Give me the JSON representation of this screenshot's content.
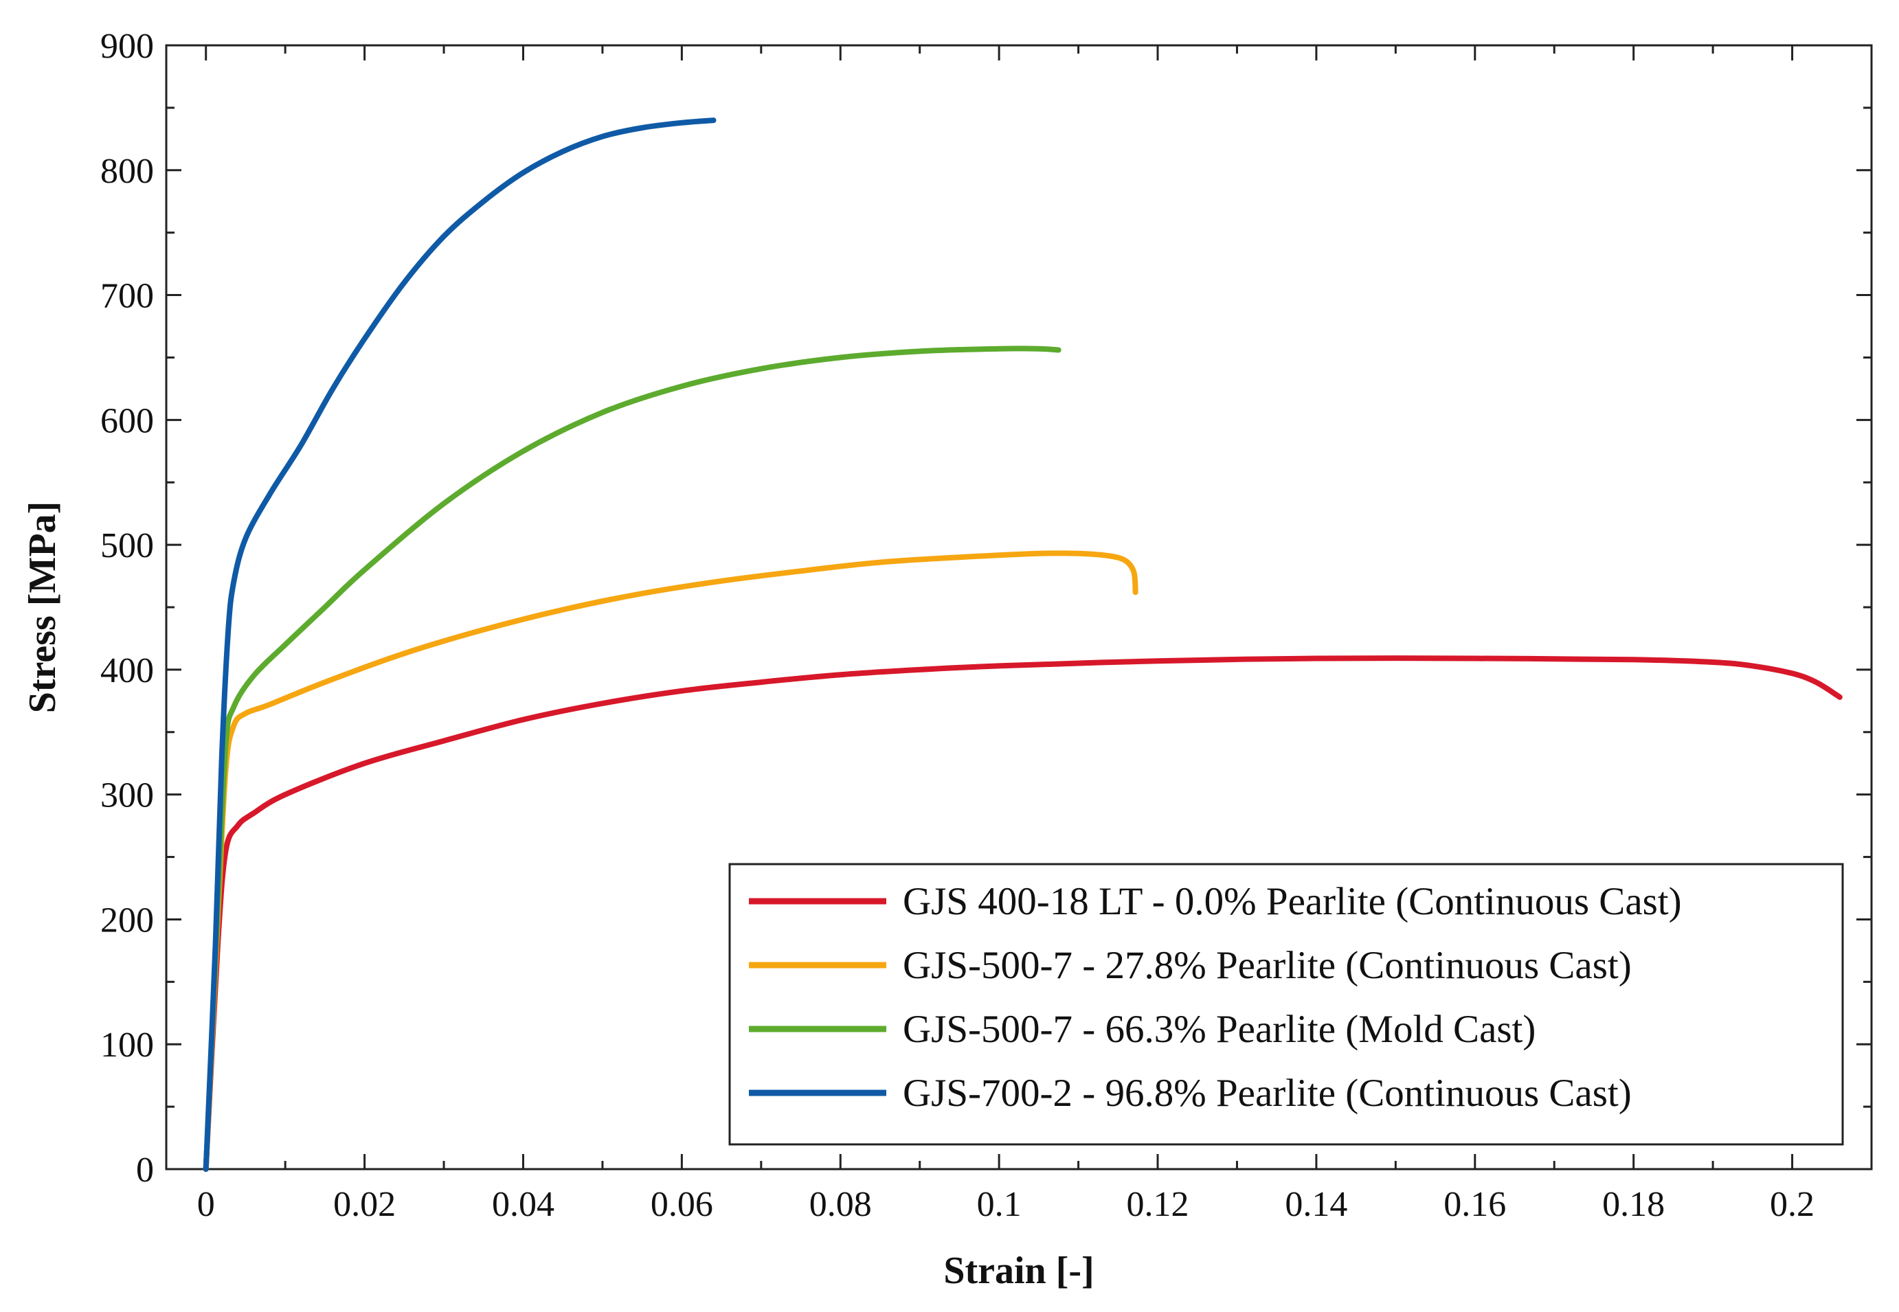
{
  "chart_data": {
    "type": "line",
    "title": "",
    "xlabel": "Strain [-]",
    "ylabel": "Stress [MPa]",
    "xlim": [
      -0.005,
      0.21
    ],
    "ylim": [
      0,
      900
    ],
    "xticks": [
      0,
      0.02,
      0.04,
      0.06,
      0.08,
      0.1,
      0.12,
      0.14,
      0.16,
      0.18,
      0.2
    ],
    "xtick_labels": [
      "0",
      "0.02",
      "0.04",
      "0.06",
      "0.08",
      "0.1",
      "0.12",
      "0.14",
      "0.16",
      "0.18",
      "0.2"
    ],
    "yticks": [
      0,
      100,
      200,
      300,
      400,
      500,
      600,
      700,
      800,
      900
    ],
    "ytick_labels": [
      "0",
      "100",
      "200",
      "300",
      "400",
      "500",
      "600",
      "700",
      "800",
      "900"
    ],
    "grid": false,
    "legend_position": "bottom-right",
    "series": [
      {
        "name": "GJS 400-18 LT - 0.0% Pearlite (Continuous Cast)",
        "color": "#d7182a",
        "x": [
          0,
          0.0015,
          0.0025,
          0.004,
          0.006,
          0.01,
          0.02,
          0.03,
          0.04,
          0.05,
          0.06,
          0.07,
          0.08,
          0.09,
          0.1,
          0.12,
          0.14,
          0.16,
          0.18,
          0.19,
          0.195,
          0.2,
          0.203,
          0.206
        ],
        "y": [
          0,
          180,
          255,
          275,
          285,
          300,
          325,
          343,
          360,
          373,
          383,
          390,
          396,
          400,
          403,
          407,
          409,
          409,
          408,
          406,
          403,
          397,
          390,
          378
        ]
      },
      {
        "name": "GJS-500-7 - 27.8% Pearlite (Continuous Cast)",
        "color": "#f6a611",
        "x": [
          0,
          0.0015,
          0.0025,
          0.0035,
          0.005,
          0.008,
          0.015,
          0.025,
          0.035,
          0.045,
          0.055,
          0.065,
          0.075,
          0.085,
          0.095,
          0.105,
          0.11,
          0.114,
          0.116,
          0.117,
          0.1172
        ],
        "y": [
          0,
          200,
          320,
          355,
          365,
          372,
          390,
          413,
          432,
          448,
          461,
          471,
          479,
          486,
          490,
          493,
          493,
          491,
          487,
          478,
          462
        ]
      },
      {
        "name": "GJS-500-7 - 66.3% Pearlite (Mold Cast)",
        "color": "#5dab2e",
        "x": [
          0,
          0.0015,
          0.0025,
          0.0035,
          0.006,
          0.01,
          0.015,
          0.02,
          0.03,
          0.04,
          0.05,
          0.06,
          0.07,
          0.08,
          0.09,
          0.1,
          0.105,
          0.1075
        ],
        "y": [
          0,
          210,
          340,
          370,
          395,
          420,
          450,
          480,
          533,
          575,
          606,
          627,
          641,
          650,
          655,
          657,
          657,
          656
        ]
      },
      {
        "name": "GJS-700-2 - 96.8% Pearlite (Continuous Cast)",
        "color": "#0f5aa6",
        "x": [
          0,
          0.0012,
          0.002,
          0.0028,
          0.0035,
          0.005,
          0.008,
          0.012,
          0.016,
          0.02,
          0.025,
          0.03,
          0.035,
          0.04,
          0.045,
          0.05,
          0.055,
          0.06,
          0.064
        ],
        "y": [
          0,
          180,
          330,
          430,
          470,
          505,
          540,
          580,
          625,
          665,
          710,
          747,
          775,
          798,
          815,
          827,
          834,
          838,
          840
        ]
      }
    ]
  }
}
